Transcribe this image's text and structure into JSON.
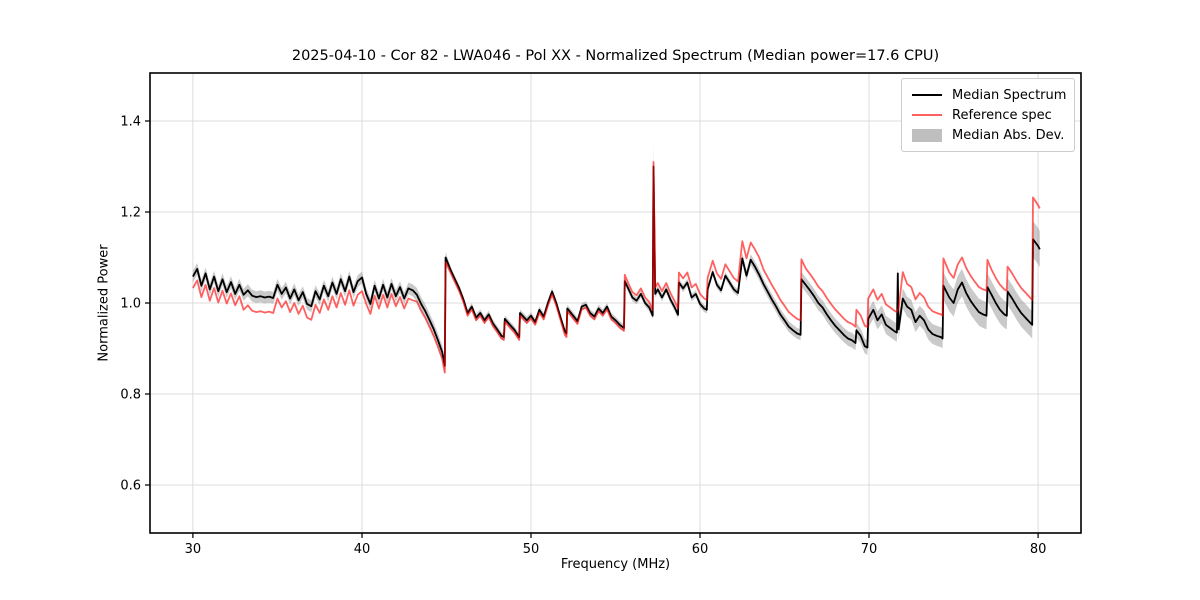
{
  "chart_data": {
    "type": "line",
    "title": "2025-04-10 - Cor 82 - LWA046 - Pol XX - Normalized Spectrum (Median power=17.6 CPU)",
    "xlabel": "Frequency (MHz)",
    "ylabel": "Normalized Power",
    "xlim": [
      27.46,
      82.54
    ],
    "ylim": [
      0.4945,
      1.5055
    ],
    "xticks": [
      30,
      40,
      50,
      60,
      70,
      80
    ],
    "xtick_labels": [
      "30",
      "40",
      "50",
      "60",
      "70",
      "80"
    ],
    "yticks": [
      0.6,
      0.8,
      1.0,
      1.2,
      1.4
    ],
    "ytick_labels": [
      "0.6",
      "0.8",
      "1.0",
      "1.2",
      "1.4"
    ],
    "grid": true,
    "legend_position": "upper right",
    "colors": {
      "median": "#000000",
      "reference": "#ff0000",
      "reference_alpha": 0.62,
      "reference_on_white": "#ff6161",
      "band": "#808080",
      "band_alpha": 0.42,
      "grid": "#dcdcdc",
      "frame": "#000000",
      "legend_border": "#cccccc",
      "background": "#ffffff"
    },
    "freq": [
      30.0,
      30.25,
      30.5,
      30.75,
      31.0,
      31.25,
      31.5,
      31.75,
      32.0,
      32.25,
      32.5,
      32.75,
      33.0,
      33.25,
      33.5,
      33.75,
      34.0,
      34.25,
      34.5,
      34.75,
      35.0,
      35.25,
      35.5,
      35.75,
      36.0,
      36.25,
      36.5,
      36.75,
      37.0,
      37.25,
      37.5,
      37.75,
      38.0,
      38.25,
      38.5,
      38.75,
      39.0,
      39.25,
      39.5,
      39.75,
      40.0,
      40.25,
      40.5,
      40.75,
      41.0,
      41.25,
      41.5,
      41.75,
      42.0,
      42.25,
      42.5,
      42.75,
      43.0,
      43.25,
      43.5,
      43.75,
      44.0,
      44.25,
      44.5,
      44.75,
      44.9,
      44.95,
      45.25,
      45.5,
      45.75,
      46.0,
      46.25,
      46.5,
      46.75,
      47.0,
      47.25,
      47.5,
      47.75,
      48.0,
      48.25,
      48.4,
      48.45,
      48.75,
      49.0,
      49.25,
      49.3,
      49.35,
      49.75,
      50.0,
      50.25,
      50.5,
      50.75,
      51.0,
      51.25,
      51.5,
      51.75,
      52.0,
      52.1,
      52.15,
      52.5,
      52.75,
      53.0,
      53.25,
      53.5,
      53.75,
      54.0,
      54.25,
      54.5,
      54.75,
      55.0,
      55.25,
      55.5,
      55.55,
      55.75,
      56.0,
      56.25,
      56.5,
      56.75,
      57.0,
      57.2,
      57.25,
      57.35,
      57.5,
      57.75,
      58.0,
      58.25,
      58.5,
      58.7,
      58.75,
      59.0,
      59.25,
      59.5,
      59.75,
      60.0,
      60.25,
      60.4,
      60.45,
      60.75,
      61.0,
      61.25,
      61.5,
      61.75,
      62.0,
      62.25,
      62.5,
      62.75,
      63.0,
      63.25,
      63.5,
      63.75,
      64.0,
      64.25,
      64.5,
      64.75,
      65.0,
      65.25,
      65.5,
      65.75,
      65.95,
      66.0,
      66.25,
      66.5,
      66.75,
      67.0,
      67.25,
      67.5,
      67.75,
      68.0,
      68.25,
      68.5,
      68.75,
      69.0,
      69.2,
      69.25,
      69.5,
      69.75,
      69.9,
      69.95,
      70.25,
      70.5,
      70.75,
      71.0,
      71.25,
      71.5,
      71.65,
      71.7,
      71.75,
      72.0,
      72.25,
      72.5,
      72.75,
      73.0,
      73.25,
      73.5,
      73.75,
      74.0,
      74.25,
      74.35,
      74.4,
      74.75,
      75.0,
      75.25,
      75.5,
      75.75,
      76.0,
      76.25,
      76.5,
      76.75,
      76.95,
      77.0,
      77.25,
      77.5,
      77.75,
      78.0,
      78.15,
      78.2,
      78.5,
      78.75,
      79.0,
      79.25,
      79.5,
      79.65,
      79.7,
      80.0,
      80.1
    ],
    "series": [
      {
        "name": "Median Spectrum",
        "type": "line",
        "color": "#000000",
        "values": [
          1.058,
          1.075,
          1.038,
          1.065,
          1.03,
          1.058,
          1.026,
          1.052,
          1.024,
          1.046,
          1.02,
          1.04,
          1.018,
          1.028,
          1.016,
          1.013,
          1.015,
          1.012,
          1.014,
          1.011,
          1.04,
          1.02,
          1.034,
          1.01,
          1.03,
          1.006,
          1.024,
          0.998,
          0.993,
          1.026,
          1.008,
          1.038,
          1.015,
          1.045,
          1.02,
          1.052,
          1.026,
          1.058,
          1.024,
          1.048,
          1.056,
          1.02,
          0.998,
          1.038,
          1.01,
          1.04,
          1.012,
          1.042,
          1.015,
          1.035,
          1.01,
          1.032,
          1.028,
          1.018,
          0.998,
          0.982,
          0.962,
          0.942,
          0.918,
          0.892,
          0.862,
          1.1,
          1.072,
          1.052,
          1.032,
          1.008,
          0.978,
          0.992,
          0.968,
          0.978,
          0.962,
          0.975,
          0.955,
          0.942,
          0.928,
          0.925,
          0.965,
          0.952,
          0.942,
          0.928,
          0.925,
          0.978,
          0.962,
          0.972,
          0.958,
          0.985,
          0.97,
          1.0,
          1.025,
          1.0,
          0.968,
          0.938,
          0.933,
          0.988,
          0.972,
          0.96,
          0.992,
          0.996,
          0.978,
          0.97,
          0.988,
          0.978,
          0.992,
          0.97,
          0.962,
          0.952,
          0.945,
          1.048,
          1.032,
          1.012,
          1.005,
          1.02,
          1.0,
          0.99,
          0.972,
          1.3,
          1.02,
          1.03,
          1.012,
          1.03,
          1.008,
          0.99,
          0.974,
          1.045,
          1.032,
          1.045,
          1.012,
          1.02,
          0.998,
          0.988,
          0.985,
          1.03,
          1.068,
          1.04,
          1.028,
          1.06,
          1.045,
          1.03,
          1.022,
          1.098,
          1.06,
          1.095,
          1.08,
          1.062,
          1.042,
          1.025,
          1.008,
          0.992,
          0.975,
          0.962,
          0.948,
          0.94,
          0.933,
          0.93,
          1.052,
          1.04,
          1.028,
          1.015,
          1.0,
          0.99,
          0.975,
          0.962,
          0.95,
          0.94,
          0.93,
          0.922,
          0.918,
          0.912,
          0.94,
          0.928,
          0.905,
          0.902,
          0.965,
          0.985,
          0.962,
          0.975,
          0.952,
          0.945,
          0.938,
          0.935,
          1.065,
          0.942,
          1.01,
          0.992,
          0.985,
          0.958,
          0.972,
          0.962,
          0.942,
          0.932,
          0.928,
          0.925,
          0.922,
          1.038,
          1.012,
          1.0,
          1.03,
          1.045,
          1.022,
          1.005,
          0.992,
          0.98,
          0.975,
          0.972,
          1.035,
          1.018,
          1.0,
          0.985,
          0.975,
          0.972,
          1.025,
          1.008,
          0.992,
          0.978,
          0.968,
          0.958,
          0.952,
          1.14,
          1.125,
          1.118
        ]
      },
      {
        "name": "Reference spec",
        "type": "line",
        "color": "#ff0000",
        "values": [
          1.033,
          1.05,
          1.013,
          1.04,
          1.005,
          1.033,
          1.001,
          1.027,
          0.999,
          1.021,
          0.995,
          1.015,
          0.985,
          0.995,
          0.983,
          0.98,
          0.982,
          0.979,
          0.981,
          0.978,
          1.01,
          0.99,
          1.004,
          0.98,
          1.0,
          0.976,
          0.994,
          0.968,
          0.963,
          0.996,
          0.978,
          1.008,
          0.985,
          1.015,
          0.99,
          1.022,
          0.996,
          1.028,
          0.994,
          1.018,
          1.026,
          0.998,
          0.976,
          1.016,
          0.988,
          1.018,
          0.99,
          1.02,
          0.993,
          1.013,
          0.988,
          1.01,
          1.006,
          1.003,
          0.983,
          0.967,
          0.947,
          0.927,
          0.903,
          0.877,
          0.847,
          1.09,
          1.066,
          1.046,
          1.026,
          1.002,
          0.972,
          0.986,
          0.962,
          0.972,
          0.956,
          0.969,
          0.949,
          0.936,
          0.922,
          0.919,
          0.959,
          0.946,
          0.936,
          0.922,
          0.919,
          0.972,
          0.956,
          0.966,
          0.952,
          0.979,
          0.964,
          0.994,
          1.019,
          0.994,
          0.962,
          0.93,
          0.925,
          0.982,
          0.966,
          0.954,
          0.986,
          0.99,
          0.972,
          0.964,
          0.982,
          0.972,
          0.986,
          0.964,
          0.956,
          0.946,
          0.939,
          1.062,
          1.044,
          1.024,
          1.017,
          1.032,
          1.012,
          1.002,
          0.984,
          1.31,
          1.034,
          1.044,
          1.026,
          1.044,
          1.022,
          1.004,
          0.988,
          1.067,
          1.054,
          1.067,
          1.034,
          1.042,
          1.02,
          1.01,
          1.007,
          1.055,
          1.093,
          1.065,
          1.053,
          1.085,
          1.07,
          1.055,
          1.047,
          1.136,
          1.098,
          1.133,
          1.118,
          1.1,
          1.074,
          1.057,
          1.04,
          1.024,
          1.007,
          0.994,
          0.98,
          0.972,
          0.965,
          0.962,
          1.096,
          1.076,
          1.064,
          1.051,
          1.036,
          1.026,
          1.011,
          0.998,
          0.986,
          0.976,
          0.966,
          0.958,
          0.954,
          0.948,
          0.985,
          0.973,
          0.95,
          0.947,
          1.01,
          1.03,
          1.007,
          1.02,
          0.997,
          0.99,
          0.983,
          0.98,
          0.985,
          0.988,
          1.068,
          1.042,
          1.035,
          1.008,
          1.022,
          1.012,
          0.992,
          0.982,
          0.978,
          0.975,
          0.972,
          1.098,
          1.067,
          1.055,
          1.085,
          1.1,
          1.077,
          1.06,
          1.047,
          1.035,
          1.03,
          1.027,
          1.095,
          1.073,
          1.055,
          1.04,
          1.03,
          1.027,
          1.08,
          1.063,
          1.047,
          1.033,
          1.023,
          1.013,
          1.007,
          1.232,
          1.215,
          1.208
        ]
      },
      {
        "name": "Median Abs. Dev.",
        "type": "band",
        "color": "#808080",
        "half_width": [
          0.013,
          0.013,
          0.013,
          0.013,
          0.013,
          0.013,
          0.013,
          0.013,
          0.013,
          0.013,
          0.013,
          0.013,
          0.013,
          0.013,
          0.013,
          0.013,
          0.013,
          0.013,
          0.013,
          0.013,
          0.013,
          0.013,
          0.013,
          0.013,
          0.013,
          0.013,
          0.013,
          0.013,
          0.013,
          0.013,
          0.013,
          0.013,
          0.013,
          0.013,
          0.013,
          0.013,
          0.013,
          0.013,
          0.013,
          0.013,
          0.013,
          0.013,
          0.013,
          0.013,
          0.013,
          0.013,
          0.013,
          0.013,
          0.013,
          0.013,
          0.013,
          0.013,
          0.013,
          0.015,
          0.015,
          0.015,
          0.015,
          0.015,
          0.015,
          0.015,
          0.015,
          0.012,
          0.008,
          0.008,
          0.008,
          0.008,
          0.008,
          0.008,
          0.008,
          0.008,
          0.008,
          0.008,
          0.008,
          0.008,
          0.008,
          0.008,
          0.008,
          0.008,
          0.008,
          0.008,
          0.008,
          0.008,
          0.008,
          0.008,
          0.008,
          0.008,
          0.008,
          0.008,
          0.008,
          0.008,
          0.008,
          0.008,
          0.008,
          0.008,
          0.008,
          0.008,
          0.008,
          0.008,
          0.008,
          0.008,
          0.008,
          0.008,
          0.008,
          0.008,
          0.008,
          0.008,
          0.008,
          0.008,
          0.008,
          0.008,
          0.008,
          0.008,
          0.008,
          0.008,
          0.008,
          0.048,
          0.008,
          0.008,
          0.008,
          0.008,
          0.008,
          0.008,
          0.008,
          0.008,
          0.008,
          0.008,
          0.008,
          0.008,
          0.008,
          0.008,
          0.008,
          0.008,
          0.008,
          0.008,
          0.008,
          0.008,
          0.008,
          0.008,
          0.008,
          0.012,
          0.012,
          0.012,
          0.012,
          0.012,
          0.012,
          0.012,
          0.012,
          0.012,
          0.012,
          0.012,
          0.012,
          0.012,
          0.012,
          0.012,
          0.016,
          0.016,
          0.016,
          0.016,
          0.016,
          0.016,
          0.016,
          0.016,
          0.016,
          0.016,
          0.016,
          0.016,
          0.016,
          0.016,
          0.016,
          0.016,
          0.016,
          0.016,
          0.02,
          0.02,
          0.02,
          0.02,
          0.02,
          0.02,
          0.02,
          0.02,
          0.028,
          0.022,
          0.022,
          0.022,
          0.022,
          0.022,
          0.022,
          0.022,
          0.022,
          0.022,
          0.022,
          0.022,
          0.022,
          0.03,
          0.03,
          0.03,
          0.03,
          0.03,
          0.03,
          0.03,
          0.03,
          0.03,
          0.03,
          0.03,
          0.03,
          0.03,
          0.03,
          0.03,
          0.03,
          0.03,
          0.03,
          0.03,
          0.03,
          0.03,
          0.03,
          0.03,
          0.03,
          0.04,
          0.04,
          0.04
        ]
      }
    ]
  }
}
